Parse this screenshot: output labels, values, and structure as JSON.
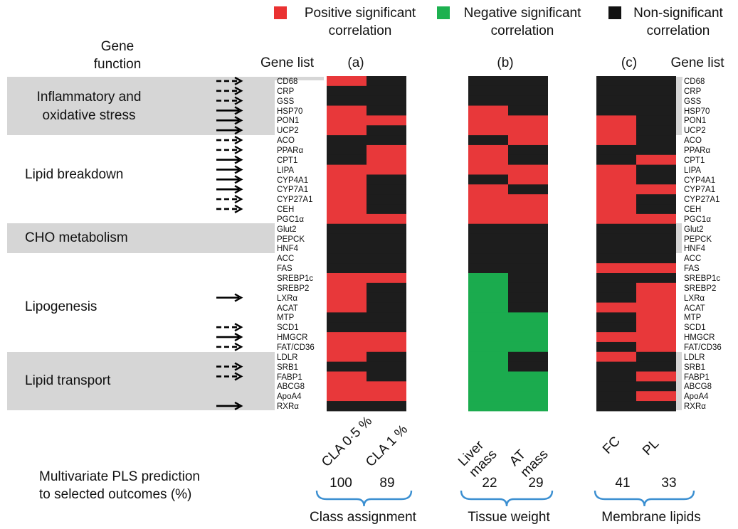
{
  "legend": [
    {
      "label_line1": "Positive significant",
      "label_line2": "correlation",
      "color": "#ea3131"
    },
    {
      "label_line1": "Negative significant",
      "label_line2": "correlation",
      "color": "#1db150"
    },
    {
      "label_line1": "Non-significant",
      "label_line2": "correlation",
      "color": "#1c1c1c"
    }
  ],
  "headers": {
    "gene_function_line1": "Gene",
    "gene_function_line2": "function",
    "gene_list_left": "Gene list",
    "gene_list_right": "Gene list",
    "panel_a": "(a)",
    "panel_b": "(b)",
    "panel_c": "(c)"
  },
  "gene_functions": [
    {
      "label_line1": "Inflammatory and",
      "label_line2": "oxidative stress",
      "shaded": true
    },
    {
      "label_line1": "Lipid breakdown",
      "label_line2": "",
      "shaded": false
    },
    {
      "label_line1": "CHO metabolism",
      "label_line2": "",
      "shaded": true
    },
    {
      "label_line1": "Lipogenesis",
      "label_line2": "",
      "shaded": false
    },
    {
      "label_line1": "Lipid transport",
      "label_line2": "",
      "shaded": true
    }
  ],
  "pls": {
    "line1": "Multivariate PLS prediction",
    "line2": "to selected outcomes (%)"
  },
  "groups": [
    {
      "name": "Class assignment",
      "values": [
        "100",
        "89"
      ]
    },
    {
      "name": "Tissue weight",
      "values": [
        "22",
        "29"
      ]
    },
    {
      "name": "Membrane lipids",
      "values": [
        "41",
        "33"
      ]
    }
  ],
  "chart_data": {
    "type": "heatmap",
    "categories": [
      "positive",
      "negative",
      "non-significant"
    ],
    "genes": [
      "CD68",
      "CRP",
      "GSS",
      "HSP70",
      "PON1",
      "UCP2",
      "ACO",
      "PPARα",
      "CPT1",
      "LIPA",
      "CYP4A1",
      "CYP7A1",
      "CYP27A1",
      "CEH",
      "PGC1α",
      "Glut2",
      "PEPCK",
      "HNF4",
      "ACC",
      "FAS",
      "SREBP1c",
      "SREBP2",
      "LXRα",
      "ACAT",
      "MTP",
      "SCD1",
      "HMGCR",
      "FAT/CD36",
      "LDLR",
      "SRB1",
      "FABP1",
      "ABCG8",
      "ApoA4",
      "RXRα"
    ],
    "arrows": [
      "dashed",
      "dashed",
      "dashed",
      "solid",
      "solid",
      "solid",
      "dashed",
      "dashed",
      "solid",
      "solid",
      "solid",
      "solid",
      "dashed",
      "dashed",
      "",
      "",
      "",
      "",
      "",
      "",
      "",
      "",
      "solid",
      "",
      "",
      "dashed",
      "solid",
      "dashed",
      "",
      "dashed",
      "dashed",
      "",
      "",
      "solid"
    ],
    "columns": [
      "CLA 0·5 %",
      "CLA 1 %",
      "Liver mass",
      "AT mass",
      "FC",
      "PL"
    ],
    "column_label_lines": [
      [
        "CLA 0·5 %"
      ],
      [
        "CLA 1 %"
      ],
      [
        "Liver",
        "mass"
      ],
      [
        "AT",
        "mass"
      ],
      [
        "FC"
      ],
      [
        "PL"
      ]
    ],
    "values": [
      [
        "P",
        "N",
        "N",
        "P",
        "P",
        "P",
        "N",
        "N",
        "N",
        "P",
        "P",
        "P",
        "P",
        "P",
        "P",
        "N",
        "N",
        "N",
        "N",
        "N",
        "P",
        "P",
        "P",
        "P",
        "N",
        "N",
        "P",
        "P",
        "P",
        "N",
        "P",
        "P",
        "P",
        "N"
      ],
      [
        "N",
        "N",
        "N",
        "N",
        "P",
        "N",
        "N",
        "P",
        "P",
        "P",
        "N",
        "N",
        "N",
        "N",
        "P",
        "N",
        "N",
        "N",
        "N",
        "N",
        "P",
        "N",
        "N",
        "N",
        "N",
        "N",
        "P",
        "P",
        "N",
        "N",
        "N",
        "P",
        "P",
        "N"
      ],
      [
        "N",
        "N",
        "N",
        "P",
        "P",
        "P",
        "N",
        "P",
        "P",
        "P",
        "N",
        "P",
        "P",
        "P",
        "P",
        "N",
        "N",
        "N",
        "N",
        "N",
        "G",
        "G",
        "G",
        "G",
        "G",
        "G",
        "G",
        "G",
        "G",
        "G",
        "G",
        "G",
        "G",
        "G"
      ],
      [
        "N",
        "N",
        "N",
        "N",
        "P",
        "P",
        "P",
        "N",
        "N",
        "P",
        "P",
        "N",
        "P",
        "P",
        "P",
        "N",
        "N",
        "N",
        "N",
        "N",
        "N",
        "N",
        "N",
        "N",
        "G",
        "G",
        "G",
        "G",
        "N",
        "N",
        "G",
        "G",
        "G",
        "G"
      ],
      [
        "N",
        "N",
        "N",
        "N",
        "P",
        "P",
        "P",
        "N",
        "N",
        "P",
        "P",
        "P",
        "P",
        "P",
        "P",
        "N",
        "N",
        "N",
        "N",
        "P",
        "N",
        "N",
        "N",
        "P",
        "N",
        "N",
        "P",
        "N",
        "P",
        "N",
        "N",
        "N",
        "N",
        "N"
      ],
      [
        "N",
        "N",
        "N",
        "N",
        "N",
        "N",
        "N",
        "N",
        "P",
        "N",
        "N",
        "P",
        "N",
        "N",
        "P",
        "N",
        "N",
        "N",
        "N",
        "P",
        "N",
        "P",
        "P",
        "P",
        "P",
        "P",
        "P",
        "P",
        "N",
        "N",
        "P",
        "N",
        "P",
        "N"
      ]
    ]
  }
}
